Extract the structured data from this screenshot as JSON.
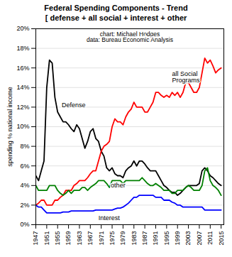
{
  "chart_data": {
    "type": "line",
    "title": "Federal Spending Components - Trend",
    "subtitle": "[ defense + all social + interest + other",
    "ylabel": "spending % national income",
    "x": [
      1947,
      1948,
      1949,
      1950,
      1951,
      1952,
      1953,
      1954,
      1955,
      1956,
      1957,
      1958,
      1959,
      1960,
      1961,
      1962,
      1963,
      1964,
      1965,
      1966,
      1967,
      1968,
      1969,
      1970,
      1971,
      1972,
      1973,
      1974,
      1975,
      1976,
      1977,
      1978,
      1979,
      1980,
      1981,
      1982,
      1983,
      1984,
      1985,
      1986,
      1987,
      1988,
      1989,
      1990,
      1991,
      1992,
      1993,
      1994,
      1995,
      1996,
      1997,
      1998,
      1999,
      2000,
      2001,
      2002,
      2003,
      2004,
      2005,
      2006,
      2007,
      2008,
      2009,
      2010,
      2011,
      2012,
      2013,
      2014,
      2015
    ],
    "series": [
      {
        "color": "#000000",
        "values": [
          5.0,
          4.5,
          5.5,
          6.5,
          14.0,
          16.8,
          16.5,
          13.0,
          11.5,
          11.0,
          10.5,
          10.5,
          10.2,
          9.8,
          9.5,
          10.2,
          9.8,
          8.8,
          7.8,
          8.5,
          9.5,
          9.8,
          8.8,
          8.5,
          7.5,
          7.0,
          5.8,
          5.5,
          5.8,
          5.2,
          5.0,
          5.0,
          4.8,
          5.5,
          5.8,
          6.0,
          6.5,
          6.0,
          6.5,
          6.5,
          6.2,
          5.8,
          5.5,
          5.5,
          5.5,
          5.0,
          4.5,
          4.0,
          3.8,
          3.5,
          3.3,
          3.3,
          3.0,
          3.2,
          3.5,
          3.8,
          4.0,
          4.0,
          4.0,
          4.0,
          4.2,
          5.5,
          5.8,
          5.5,
          5.0,
          4.8,
          4.5,
          4.2,
          4.0
        ]
      },
      {
        "color": "#ff0000",
        "values": [
          2.0,
          2.2,
          2.5,
          2.5,
          2.0,
          2.0,
          2.0,
          2.5,
          2.5,
          2.8,
          3.0,
          3.5,
          3.5,
          3.5,
          4.0,
          4.2,
          4.5,
          4.5,
          4.5,
          4.8,
          5.2,
          5.5,
          5.5,
          6.5,
          7.5,
          8.0,
          8.2,
          8.5,
          10.0,
          10.8,
          10.5,
          10.5,
          10.2,
          11.0,
          11.5,
          11.8,
          12.5,
          12.0,
          12.0,
          12.0,
          11.5,
          11.5,
          12.0,
          12.5,
          13.5,
          13.5,
          13.2,
          13.0,
          13.2,
          13.0,
          13.5,
          13.2,
          13.5,
          13.0,
          13.5,
          14.5,
          14.5,
          14.0,
          13.5,
          13.5,
          14.0,
          15.5,
          17.0,
          16.5,
          16.8,
          16.2,
          15.5,
          15.8,
          16.0
        ]
      },
      {
        "color": "#0000ff",
        "values": [
          2.0,
          1.8,
          1.8,
          1.5,
          1.2,
          1.2,
          1.2,
          1.2,
          1.2,
          1.2,
          1.3,
          1.3,
          1.3,
          1.4,
          1.4,
          1.4,
          1.4,
          1.4,
          1.4,
          1.4,
          1.4,
          1.4,
          1.5,
          1.5,
          1.5,
          1.5,
          1.5,
          1.5,
          1.5,
          1.6,
          1.7,
          1.7,
          1.8,
          2.0,
          2.2,
          2.5,
          2.8,
          2.8,
          3.0,
          3.0,
          3.0,
          3.0,
          3.0,
          3.0,
          2.8,
          2.8,
          2.8,
          2.5,
          2.5,
          2.5,
          2.3,
          2.2,
          2.0,
          2.0,
          1.8,
          1.8,
          1.8,
          1.8,
          1.8,
          1.8,
          1.8,
          1.8,
          1.5,
          1.5,
          1.5,
          1.5,
          1.5,
          1.5,
          1.5
        ]
      },
      {
        "color": "#008000",
        "values": [
          4.0,
          3.5,
          3.5,
          3.5,
          3.5,
          4.0,
          4.0,
          4.0,
          3.5,
          3.2,
          3.0,
          3.2,
          3.5,
          3.2,
          3.5,
          3.5,
          3.5,
          3.8,
          3.8,
          3.5,
          3.8,
          4.0,
          4.2,
          4.5,
          4.5,
          4.5,
          4.2,
          3.8,
          4.5,
          4.5,
          4.5,
          4.5,
          4.2,
          4.5,
          4.5,
          4.5,
          4.5,
          4.5,
          4.5,
          4.8,
          4.5,
          4.2,
          4.0,
          4.0,
          4.2,
          4.0,
          3.8,
          3.5,
          3.5,
          3.5,
          3.2,
          3.2,
          3.5,
          3.5,
          3.5,
          3.8,
          4.0,
          3.8,
          3.5,
          3.5,
          3.5,
          4.0,
          5.5,
          5.8,
          4.5,
          4.0,
          3.8,
          3.5,
          3.0
        ]
      }
    ],
    "xlim": [
      1947,
      2016
    ],
    "xticks": [
      1947,
      1951,
      1955,
      1959,
      1963,
      1967,
      1971,
      1975,
      1979,
      1983,
      1987,
      1991,
      1995,
      1999,
      2003,
      2007,
      2011,
      2015
    ],
    "ylim": [
      0,
      20
    ],
    "yticks": [
      {
        "value": 0,
        "label": "0%"
      },
      {
        "value": 2,
        "label": "2%"
      },
      {
        "value": 4,
        "label": "4%"
      },
      {
        "value": 6,
        "label": "6%"
      },
      {
        "value": 8,
        "label": "8%"
      },
      {
        "value": 10,
        "label": "10%"
      },
      {
        "value": 12,
        "label": "12%"
      },
      {
        "value": 14,
        "label": "14%"
      },
      {
        "value": 16,
        "label": "16%"
      },
      {
        "value": 18,
        "label": "18%"
      },
      {
        "value": 20,
        "label": "20%"
      }
    ],
    "grid": true,
    "annotations": [
      {
        "text": "chart: Michael Hodges\ndata: Bureau Economic Analysis"
      },
      {
        "text": "Defense",
        "x": 1956.5,
        "y": 12.0
      },
      {
        "text": "all Social\nPrograms",
        "x": 1997,
        "y": 14.5
      },
      {
        "text": "other",
        "x": 1974.5,
        "y": 3.8
      },
      {
        "text": "Interest",
        "x": 1970,
        "y": 0.5
      }
    ]
  }
}
